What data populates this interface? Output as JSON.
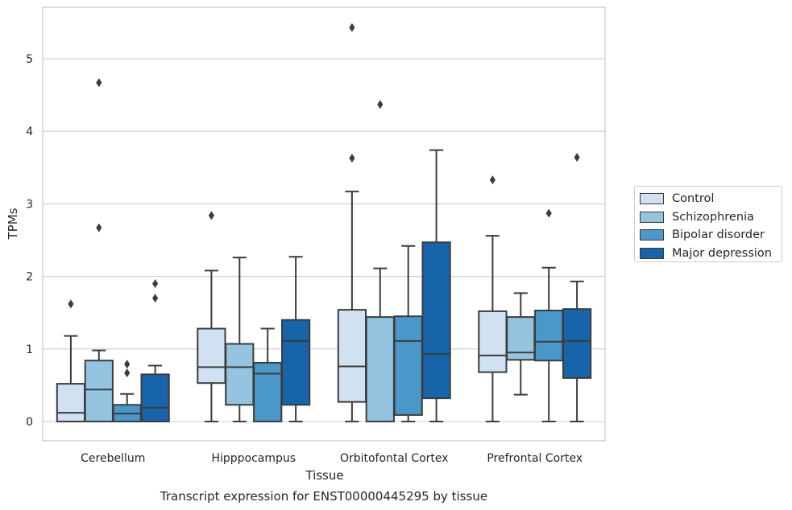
{
  "chart_data": {
    "type": "box",
    "caption": "Transcript expression for ENST00000445295 by tissue",
    "xlabel": "Tissue",
    "ylabel": "TPMs",
    "ylim": [
      -0.27,
      5.72
    ],
    "yticks": [
      0,
      1,
      2,
      3,
      4,
      5
    ],
    "grid": "horizontal",
    "legend_position": "right",
    "categories": [
      "Cerebellum",
      "Hipppocampus",
      "Orbitofontal Cortex",
      "Prefrontal Cortex"
    ],
    "series": [
      {
        "name": "Control",
        "color": "#d0e1f2",
        "boxes": [
          {
            "whislo": 0,
            "q1": 0,
            "med": 0.12,
            "q3": 0.52,
            "whishi": 1.18,
            "fliers": [
              1.62
            ]
          },
          {
            "whislo": 0,
            "q1": 0.53,
            "med": 0.75,
            "q3": 1.28,
            "whishi": 2.08,
            "fliers": [
              2.84
            ]
          },
          {
            "whislo": 0,
            "q1": 0.27,
            "med": 0.76,
            "q3": 1.54,
            "whishi": 3.17,
            "fliers": [
              3.63,
              5.43
            ]
          },
          {
            "whislo": 0,
            "q1": 0.68,
            "med": 0.91,
            "q3": 1.52,
            "whishi": 2.56,
            "fliers": [
              3.33
            ]
          }
        ]
      },
      {
        "name": "Schizophrenia",
        "color": "#94c4df",
        "boxes": [
          {
            "whislo": 0,
            "q1": 0,
            "med": 0.44,
            "q3": 0.84,
            "whishi": 0.98,
            "fliers": [
              2.67,
              4.67
            ]
          },
          {
            "whislo": 0,
            "q1": 0.23,
            "med": 0.75,
            "q3": 1.07,
            "whishi": 2.26,
            "fliers": []
          },
          {
            "whislo": 0,
            "q1": 0,
            "med": 0,
            "q3": 1.44,
            "whishi": 2.11,
            "fliers": [
              4.37
            ]
          },
          {
            "whislo": 0.37,
            "q1": 0.85,
            "med": 0.95,
            "q3": 1.44,
            "whishi": 1.77,
            "fliers": []
          }
        ]
      },
      {
        "name": "Bipolar disorder",
        "color": "#4a98c9",
        "boxes": [
          {
            "whislo": 0,
            "q1": 0,
            "med": 0.11,
            "q3": 0.23,
            "whishi": 0.38,
            "fliers": [
              0.67,
              0.79
            ]
          },
          {
            "whislo": 0,
            "q1": 0,
            "med": 0.66,
            "q3": 0.81,
            "whishi": 1.28,
            "fliers": []
          },
          {
            "whislo": 0,
            "q1": 0.09,
            "med": 1.11,
            "q3": 1.45,
            "whishi": 2.42,
            "fliers": []
          },
          {
            "whislo": 0,
            "q1": 0.84,
            "med": 1.1,
            "q3": 1.53,
            "whishi": 2.12,
            "fliers": [
              2.87
            ]
          }
        ]
      },
      {
        "name": "Major depression",
        "color": "#1764ab",
        "boxes": [
          {
            "whislo": 0,
            "q1": 0,
            "med": 0.19,
            "q3": 0.65,
            "whishi": 0.77,
            "fliers": [
              1.7,
              1.9
            ]
          },
          {
            "whislo": 0,
            "q1": 0.23,
            "med": 1.11,
            "q3": 1.4,
            "whishi": 2.27,
            "fliers": []
          },
          {
            "whislo": 0,
            "q1": 0.32,
            "med": 0.93,
            "q3": 2.47,
            "whishi": 3.74,
            "fliers": []
          },
          {
            "whislo": 0,
            "q1": 0.6,
            "med": 1.11,
            "q3": 1.55,
            "whishi": 1.93,
            "fliers": [
              3.64
            ]
          }
        ]
      }
    ]
  }
}
